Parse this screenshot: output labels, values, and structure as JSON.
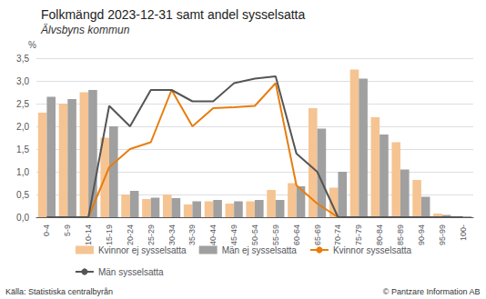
{
  "chart_data": {
    "type": "bar",
    "title": "Folkmängd 2023-12-31 samt andel sysselsatta",
    "subtitle": "Älvsbyns kommun",
    "ylabel": "%",
    "categories": [
      "0-4",
      "5-9",
      "10-14",
      "15-19",
      "20-24",
      "25-29",
      "30-34",
      "35-39",
      "40-44",
      "45-49",
      "50-54",
      "55-59",
      "60-64",
      "65-69",
      "70-74",
      "75-79",
      "80-84",
      "85-89",
      "90-94",
      "95-99",
      "100-"
    ],
    "series": [
      {
        "name": "Kvinnor ej sysselsatta",
        "type": "bar",
        "color": "#f5c492",
        "values": [
          2.3,
          2.5,
          2.75,
          1.75,
          0.5,
          0.4,
          0.5,
          0.28,
          0.35,
          0.3,
          0.35,
          0.6,
          0.75,
          2.4,
          0.65,
          3.25,
          2.2,
          1.65,
          0.82,
          0.08,
          0.02
        ]
      },
      {
        "name": "Män ej sysselsatta",
        "type": "bar",
        "color": "#a0a0a0",
        "values": [
          2.65,
          2.6,
          2.8,
          2.0,
          0.58,
          0.43,
          0.42,
          0.35,
          0.38,
          0.35,
          0.38,
          0.38,
          0.68,
          1.95,
          1.0,
          3.05,
          1.82,
          1.05,
          0.45,
          0.05,
          0.02
        ]
      },
      {
        "name": "Kvinnor sysselsatta",
        "type": "line",
        "color": "#e87d0e",
        "values": [
          0.0,
          0.0,
          0.0,
          1.1,
          1.5,
          1.65,
          2.8,
          2.0,
          2.4,
          2.42,
          2.45,
          2.95,
          0.7,
          0.3,
          0.0,
          0.0,
          0.0,
          0.0,
          0.0,
          0.0,
          0.0
        ]
      },
      {
        "name": "Män sysselsatta",
        "type": "line",
        "color": "#555555",
        "values": [
          0.0,
          0.0,
          0.0,
          2.45,
          2.0,
          2.8,
          2.8,
          2.55,
          2.55,
          2.95,
          3.05,
          3.1,
          1.4,
          1.0,
          0.0,
          0.0,
          0.0,
          0.0,
          0.0,
          0.0,
          0.0
        ]
      }
    ],
    "ylim": [
      0,
      3.5
    ],
    "yticks": [
      {
        "value": 0.0,
        "label": "0,0"
      },
      {
        "value": 0.5,
        "label": "0,5"
      },
      {
        "value": 1.0,
        "label": "1,0"
      },
      {
        "value": 1.5,
        "label": "1,5"
      },
      {
        "value": 2.0,
        "label": "2,0"
      },
      {
        "value": 2.5,
        "label": "2,5"
      },
      {
        "value": 3.0,
        "label": "3,0"
      },
      {
        "value": 3.5,
        "label": "3,5"
      }
    ],
    "grid": true,
    "legend": "bottom",
    "annotations": [
      "Källa: Statistiska centralbyrån",
      "© Pantzare Information AB"
    ]
  }
}
